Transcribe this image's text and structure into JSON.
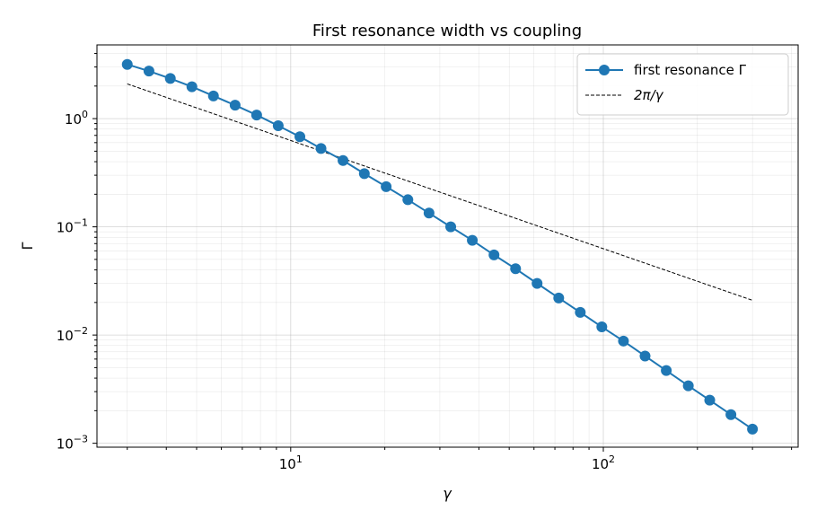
{
  "chart_data": {
    "type": "line",
    "title": "First resonance width vs coupling",
    "xlabel": "γ",
    "ylabel": "Γ",
    "xscale": "log",
    "yscale": "log",
    "xlim": [
      2.4,
      420
    ],
    "ylim": [
      0.00092,
      4.8
    ],
    "grid": "major and minor",
    "legend_position": "top-right",
    "x_ticks": [
      {
        "value": 10,
        "base": "10",
        "exp": "1"
      },
      {
        "value": 100,
        "base": "10",
        "exp": "2"
      }
    ],
    "y_ticks": [
      {
        "value": 1,
        "base": "10",
        "exp": "0"
      },
      {
        "value": 0.1,
        "base": "10",
        "exp": "−1"
      },
      {
        "value": 0.01,
        "base": "10",
        "exp": "−2"
      },
      {
        "value": 0.001,
        "base": "10",
        "exp": "−3"
      }
    ],
    "series": [
      {
        "name": "first resonance Γ",
        "color": "#1f77b4",
        "style": "solid-line-with-circle-markers",
        "x": [
          3.0,
          3.52,
          4.12,
          4.83,
          5.66,
          6.64,
          7.78,
          9.12,
          10.7,
          12.5,
          14.7,
          17.2,
          20.2,
          23.7,
          27.7,
          32.5,
          38.1,
          44.7,
          52.4,
          61.4,
          72.0,
          84.4,
          98.9,
          116,
          136,
          159,
          187,
          219,
          256,
          300
        ],
        "y": [
          3.17,
          2.75,
          2.35,
          1.97,
          1.62,
          1.33,
          1.08,
          0.86,
          0.68,
          0.53,
          0.41,
          0.31,
          0.235,
          0.178,
          0.134,
          0.1,
          0.075,
          0.055,
          0.041,
          0.03,
          0.022,
          0.0162,
          0.0119,
          0.0088,
          0.0064,
          0.0047,
          0.0034,
          0.0025,
          0.00184,
          0.00135
        ]
      },
      {
        "name": "2π/γ",
        "color": "#000000",
        "style": "dashed-line",
        "x": [
          3.0,
          300
        ],
        "y": [
          2.094,
          0.02094
        ]
      }
    ]
  }
}
